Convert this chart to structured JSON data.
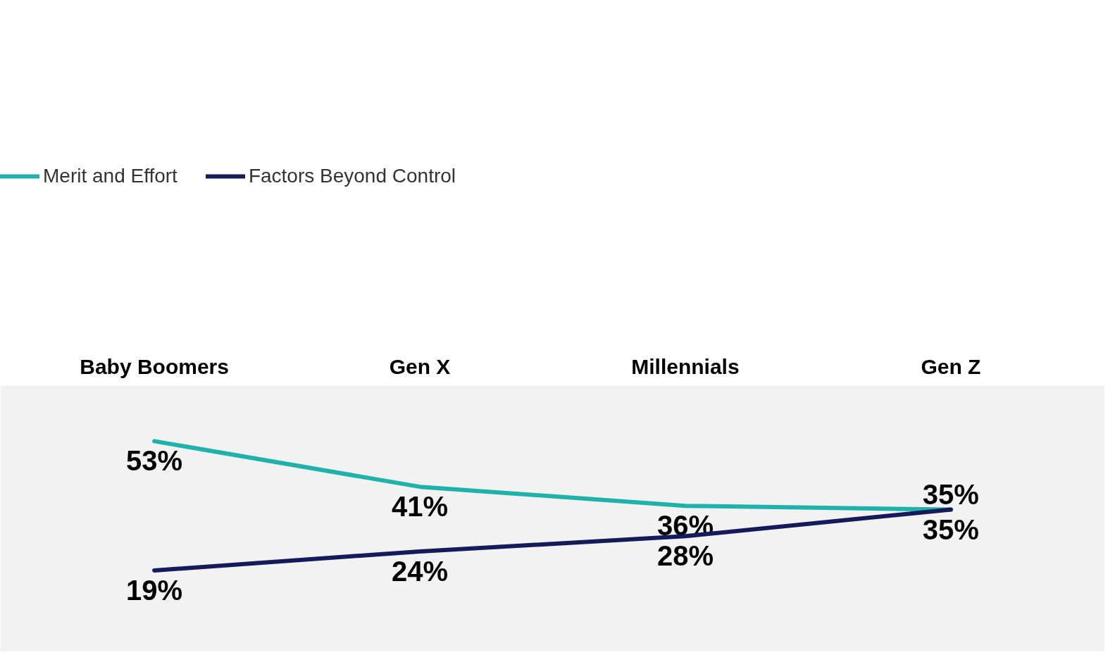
{
  "chart_data": {
    "type": "line",
    "categories": [
      "Baby Boomers",
      "Gen X",
      "Millennials",
      "Gen Z"
    ],
    "series": [
      {
        "name": "Merit and Effort",
        "color": "#20b2aa",
        "values": [
          53,
          41,
          36,
          35
        ],
        "value_labels": [
          "53%",
          "41%",
          "36%",
          "35%"
        ]
      },
      {
        "name": "Factors Beyond Control",
        "color": "#141a5a",
        "values": [
          19,
          24,
          28,
          35
        ],
        "value_labels": [
          "19%",
          "24%",
          "28%",
          "35%"
        ]
      }
    ],
    "legend": "top left",
    "grid": false,
    "marker": "none",
    "line_style": "solid",
    "tick_labels": "x"
  }
}
